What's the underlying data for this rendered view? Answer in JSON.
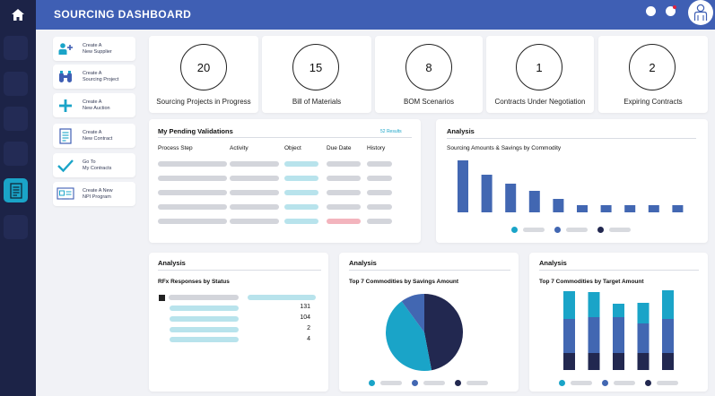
{
  "header": {
    "title": "SOURCING DASHBOARD"
  },
  "nav": {
    "icons": [
      "home-icon",
      "menu-slot",
      "menu-slot",
      "menu-slot",
      "menu-slot",
      "menu-slot",
      "document-list-icon",
      "menu-slot"
    ]
  },
  "quick_actions": [
    {
      "label": "Create A\nNew Supplier",
      "icon": "add-supplier-icon"
    },
    {
      "label": "Create A\nSourcing Project",
      "icon": "binoculars-icon"
    },
    {
      "label": "Create A\nNew Auction",
      "icon": "plus-icon"
    },
    {
      "label": "Create A\nNew Contract",
      "icon": "contract-icon"
    },
    {
      "label": "Go To\nMy Contracts",
      "icon": "checkmark-icon"
    },
    {
      "label": "Create A New\nNPI Program",
      "icon": "npi-program-icon"
    }
  ],
  "stats": [
    {
      "value": "20",
      "label": "Sourcing Projects in Progress"
    },
    {
      "value": "15",
      "label": "Bill of Materials"
    },
    {
      "value": "8",
      "label": "BOM Scenarios"
    },
    {
      "value": "1",
      "label": "Contracts Under Negotiation"
    },
    {
      "value": "2",
      "label": "Expiring Contracts"
    }
  ],
  "validations": {
    "title": "My Pending Validations",
    "results": "52 Results",
    "columns": [
      "Process Step",
      "Activity",
      "Object",
      "Due Date",
      "History"
    ]
  },
  "analysis_top": {
    "title": "Analysis",
    "subtitle": "Sourcing Amounts & Savings by Commodity"
  },
  "rfx": {
    "title": "Analysis",
    "subtitle": "RFx Responses by Status",
    "counts": [
      "131",
      "104",
      "2",
      "4"
    ]
  },
  "savings": {
    "title": "Analysis",
    "subtitle": "Top 7 Commodities by Savings Amount"
  },
  "target": {
    "title": "Analysis",
    "subtitle": "Top 7 Commodities by Target Amount"
  },
  "colors": {
    "navy": "#1c2347",
    "blue": "#3f5fb4",
    "bar_blue": "#4267b2",
    "teal": "#1aa4c8",
    "dark": "#222850"
  },
  "chart_data": [
    {
      "type": "bar",
      "title": "Sourcing Amounts & Savings by Commodity",
      "categories": [
        "",
        "",
        "",
        "",
        "",
        "",
        "",
        "",
        "",
        ""
      ],
      "values": [
        58,
        42,
        32,
        24,
        15,
        8,
        8,
        8,
        8,
        8
      ],
      "ylim": [
        0,
        60
      ],
      "legend": "bottom",
      "grid": false
    },
    {
      "type": "pie",
      "title": "Top 7 Commodities by Savings Amount",
      "values": [
        43,
        47,
        10
      ],
      "colors": [
        "#1aa4c8",
        "#222850",
        "#4267b2"
      ],
      "legend": "bottom"
    },
    {
      "type": "bar",
      "stacked": true,
      "title": "Top 7 Commodities by Target Amount",
      "categories": [
        "",
        "",
        "",
        "",
        ""
      ],
      "series": [
        {
          "values": [
            19,
            19,
            19,
            19,
            19
          ],
          "color": "#222850"
        },
        {
          "values": [
            38,
            40,
            40,
            33,
            38
          ],
          "color": "#4267b2"
        },
        {
          "values": [
            31,
            28,
            15,
            23,
            32
          ],
          "color": "#1aa4c8"
        }
      ],
      "ylim": [
        0,
        90
      ],
      "legend": "bottom",
      "grid": false
    }
  ]
}
